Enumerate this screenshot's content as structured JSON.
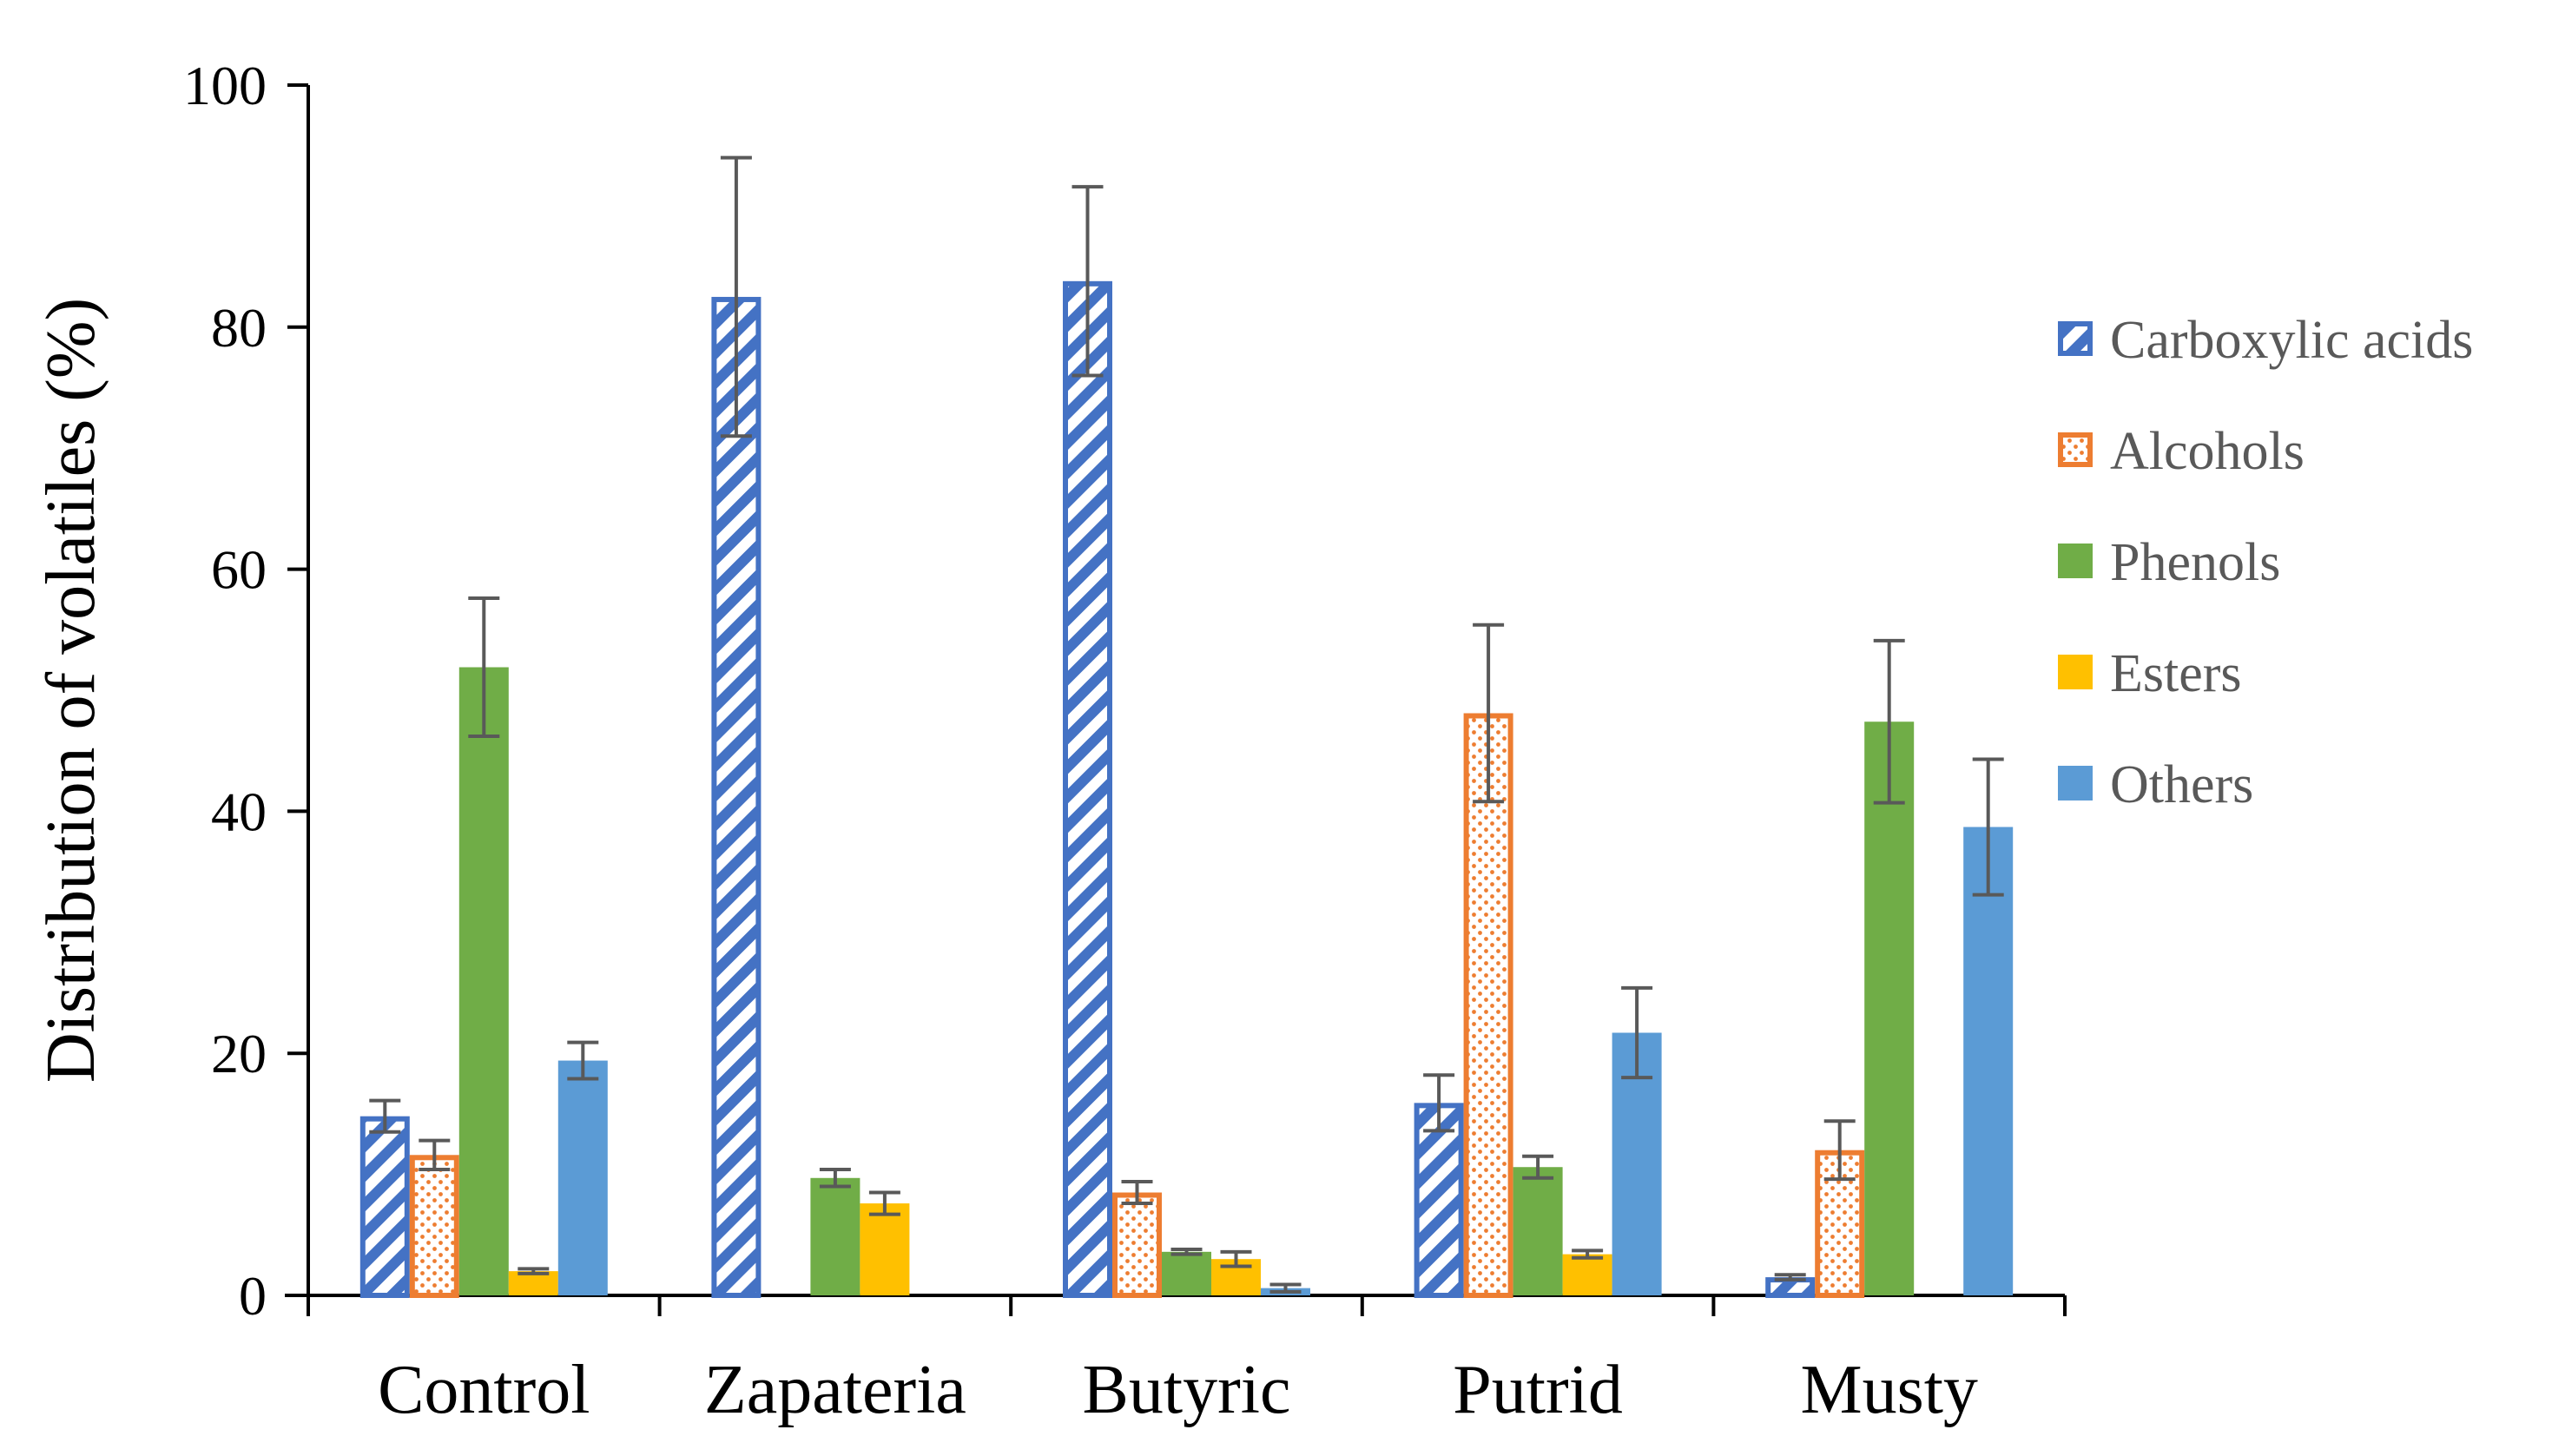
{
  "chart_data": {
    "type": "bar",
    "title": "",
    "xlabel": "",
    "ylabel": "Distribution of volatiles (%)",
    "ylim": [
      0,
      100
    ],
    "yticks": [
      0,
      20,
      40,
      60,
      80,
      100
    ],
    "grid": false,
    "legend_position": "right",
    "categories": [
      "Control",
      "Zapateria",
      "Butyric",
      "Putrid",
      "Musty"
    ],
    "series": [
      {
        "name": "Carboxylic acids",
        "color": "#4472C4",
        "pattern": "diagonal-stripes",
        "values": [
          14.8,
          82.5,
          83.8,
          15.9,
          1.5
        ],
        "errors": [
          1.3,
          11.5,
          7.8,
          2.3,
          0.2
        ]
      },
      {
        "name": "Alcohols",
        "color": "#ED7D31",
        "pattern": "dots",
        "values": [
          11.6,
          null,
          8.5,
          48.1,
          12.0
        ],
        "errors": [
          1.2,
          null,
          0.9,
          7.3,
          2.4
        ]
      },
      {
        "name": "Phenols",
        "color": "#70AD47",
        "pattern": "solid",
        "values": [
          51.9,
          9.7,
          3.6,
          10.6,
          47.4
        ],
        "errors": [
          5.7,
          0.7,
          0.2,
          0.9,
          6.7
        ]
      },
      {
        "name": "Esters",
        "color": "#FFC000",
        "pattern": "solid",
        "values": [
          2.0,
          7.6,
          3.0,
          3.4,
          null
        ],
        "errors": [
          0.2,
          0.9,
          0.6,
          0.3,
          null
        ]
      },
      {
        "name": "Others",
        "color": "#5B9BD5",
        "pattern": "solid",
        "values": [
          19.4,
          null,
          0.6,
          21.7,
          38.7
        ],
        "errors": [
          1.5,
          null,
          0.3,
          3.7,
          5.6
        ]
      }
    ]
  }
}
